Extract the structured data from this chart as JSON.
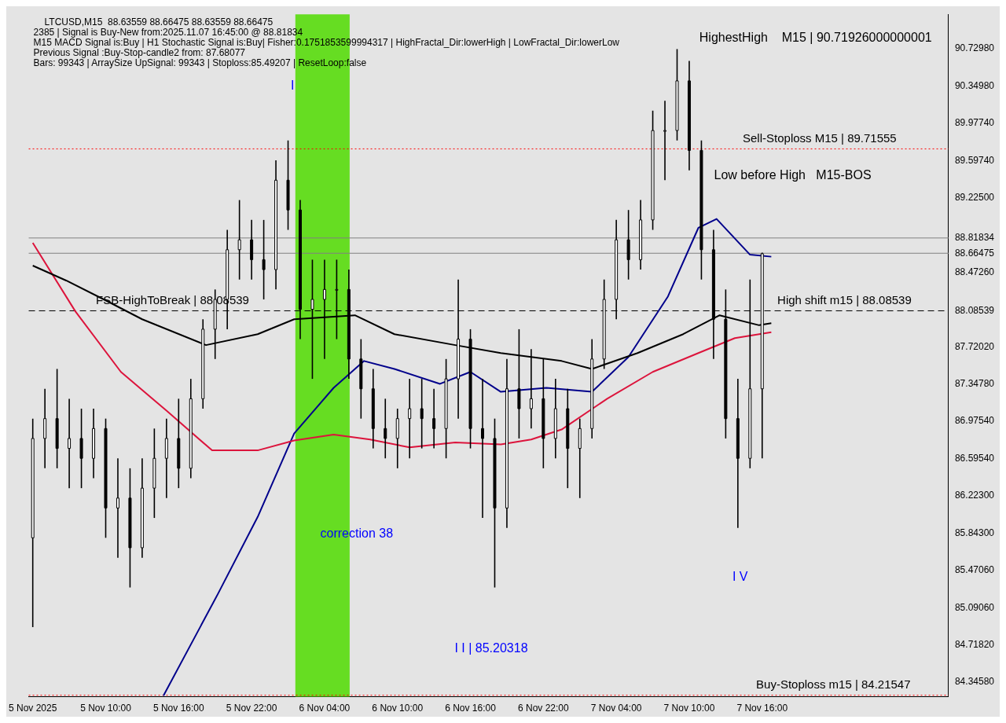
{
  "chart_data": {
    "type": "candlestick",
    "title": "LTCUSD,M15  88.63559 88.66475 88.63559 88.66475",
    "annotations": [
      "2385 | Signal is Buy-New from:2025.11.07 16:45:00 @ 88.81834",
      "M15 MACD Signal is:Buy | H1 Stochastic Signal is:Buy| Fisher:0.1751853599994317 | HighFractal_Dir:lowerHigh | LowFractal_Dir:lowerLow",
      "Previous Signal :Buy-Stop-candle2 from: 87.68077",
      "Bars: 99343 | ArraySize UpSignal: 99343 | Stoploss:85.49207 | ResetLoop:false",
      "HighestHigh    M15 | 90.71926000000001",
      "Low before High   M15-BOS",
      "I",
      "correction 38",
      "I I | 85.20318",
      "I V",
      {
        "text": "Sell-Stoploss M15 | 89.71555",
        "x": "2025-11-07T14:24",
        "y": 89.71555
      },
      {
        "text": "FSB-HighToBreak | 88.08539",
        "x": "2025-11-05T09:12",
        "y": 88.08539
      },
      {
        "text": "High shift m15 | 88.08539",
        "x": "2025-11-07T17:15",
        "y": 88.08539
      },
      {
        "text": "Buy-Stoploss m15 | 84.21547",
        "x": "2025-11-07T15:30",
        "y": 84.21547
      }
    ],
    "x": [
      "2025-11-05T04:00",
      "2025-11-05T05:00",
      "2025-11-05T06:00",
      "2025-11-05T07:00",
      "2025-11-05T08:00",
      "2025-11-05T09:00",
      "2025-11-05T10:00",
      "2025-11-05T11:00",
      "2025-11-05T12:00",
      "2025-11-05T13:00",
      "2025-11-05T14:00",
      "2025-11-05T15:00",
      "2025-11-05T16:00",
      "2025-11-05T17:00",
      "2025-11-05T18:00",
      "2025-11-05T19:00",
      "2025-11-05T20:00",
      "2025-11-05T21:00",
      "2025-11-05T22:00",
      "2025-11-05T23:00",
      "2025-11-06T00:00",
      "2025-11-06T01:00",
      "2025-11-06T02:00",
      "2025-11-06T03:00",
      "2025-11-06T04:00",
      "2025-11-06T05:00",
      "2025-11-06T06:00",
      "2025-11-06T07:00",
      "2025-11-06T08:00",
      "2025-11-06T09:00",
      "2025-11-06T10:00",
      "2025-11-06T11:00",
      "2025-11-06T12:00",
      "2025-11-06T13:00",
      "2025-11-06T14:00",
      "2025-11-06T15:00",
      "2025-11-06T16:00",
      "2025-11-06T17:00",
      "2025-11-06T18:00",
      "2025-11-06T19:00",
      "2025-11-06T20:00",
      "2025-11-06T21:00",
      "2025-11-06T22:00",
      "2025-11-06T23:00",
      "2025-11-07T00:00",
      "2025-11-07T01:00",
      "2025-11-07T02:00",
      "2025-11-07T03:00",
      "2025-11-07T04:00",
      "2025-11-07T05:00",
      "2025-11-07T06:00",
      "2025-11-07T07:00",
      "2025-11-07T08:00",
      "2025-11-07T09:00",
      "2025-11-07T10:00",
      "2025-11-07T11:00",
      "2025-11-07T12:00",
      "2025-11-07T13:00",
      "2025-11-07T14:00",
      "2025-11-07T15:00",
      "2025-11-07T16:00"
    ],
    "ohlc": [
      [
        85.8,
        87.0,
        84.9,
        86.8
      ],
      [
        86.8,
        87.3,
        86.5,
        87.0
      ],
      [
        87.0,
        87.5,
        86.5,
        86.7
      ],
      [
        86.7,
        87.2,
        86.3,
        86.8
      ],
      [
        86.8,
        87.1,
        86.3,
        86.6
      ],
      [
        86.6,
        87.1,
        86.4,
        86.9
      ],
      [
        86.9,
        87.0,
        85.8,
        86.1
      ],
      [
        86.1,
        86.6,
        85.6,
        86.2
      ],
      [
        86.2,
        86.5,
        85.3,
        85.7
      ],
      [
        85.7,
        86.6,
        85.6,
        86.3
      ],
      [
        86.3,
        86.9,
        86.0,
        86.6
      ],
      [
        86.6,
        87.0,
        86.2,
        86.8
      ],
      [
        86.8,
        87.2,
        86.3,
        86.5
      ],
      [
        86.5,
        87.4,
        86.4,
        87.2
      ],
      [
        87.2,
        88.0,
        87.1,
        87.9
      ],
      [
        87.9,
        88.3,
        87.6,
        88.2
      ],
      [
        88.2,
        88.9,
        87.9,
        88.7
      ],
      [
        88.7,
        89.2,
        88.4,
        88.8
      ],
      [
        88.8,
        89.0,
        88.4,
        88.6
      ],
      [
        88.6,
        89.0,
        88.2,
        88.5
      ],
      [
        88.5,
        89.6,
        88.3,
        89.4
      ],
      [
        89.4,
        89.8,
        88.9,
        89.1
      ],
      [
        89.1,
        89.2,
        87.8,
        88.1
      ],
      [
        88.1,
        88.6,
        87.4,
        88.2
      ],
      [
        88.2,
        88.6,
        87.6,
        88.3
      ],
      [
        88.3,
        88.6,
        87.8,
        88.3
      ],
      [
        88.3,
        88.5,
        87.4,
        87.6
      ],
      [
        87.6,
        87.8,
        87.0,
        87.3
      ],
      [
        87.3,
        87.5,
        86.7,
        86.9
      ],
      [
        86.9,
        87.2,
        86.6,
        86.8
      ],
      [
        86.8,
        87.1,
        86.5,
        87.0
      ],
      [
        87.0,
        87.4,
        86.6,
        87.1
      ],
      [
        87.1,
        87.4,
        86.7,
        87.0
      ],
      [
        87.0,
        87.3,
        86.7,
        86.9
      ],
      [
        86.9,
        87.6,
        86.6,
        87.4
      ],
      [
        87.4,
        88.4,
        87.0,
        87.8
      ],
      [
        87.8,
        87.9,
        86.7,
        86.9
      ],
      [
        86.9,
        87.4,
        86.0,
        86.8
      ],
      [
        86.8,
        87.0,
        85.3,
        86.1
      ],
      [
        86.1,
        87.6,
        85.9,
        87.3
      ],
      [
        87.3,
        87.9,
        86.8,
        87.1
      ],
      [
        87.1,
        87.7,
        86.9,
        87.2
      ],
      [
        87.2,
        87.6,
        86.5,
        86.8
      ],
      [
        86.8,
        87.4,
        86.6,
        87.1
      ],
      [
        87.1,
        87.3,
        86.3,
        86.7
      ],
      [
        86.7,
        87.0,
        86.2,
        86.9
      ],
      [
        86.9,
        87.8,
        86.8,
        87.6
      ],
      [
        87.6,
        88.4,
        87.5,
        88.2
      ],
      [
        88.2,
        89.0,
        88.0,
        88.8
      ],
      [
        88.8,
        89.1,
        88.4,
        88.6
      ],
      [
        88.6,
        89.2,
        88.5,
        89.0
      ],
      [
        89.0,
        90.1,
        88.9,
        89.9
      ],
      [
        89.9,
        90.2,
        89.4,
        89.9
      ],
      [
        89.9,
        90.72,
        89.8,
        90.4
      ],
      [
        90.4,
        90.6,
        89.5,
        89.7
      ],
      [
        89.7,
        89.8,
        88.4,
        88.7
      ],
      [
        88.7,
        88.9,
        87.6,
        88.0
      ],
      [
        88.0,
        88.3,
        86.8,
        87.0
      ],
      [
        87.0,
        87.4,
        85.9,
        86.6
      ],
      [
        86.6,
        88.4,
        86.5,
        87.3
      ],
      [
        87.3,
        88.67,
        86.6,
        88.66
      ]
    ],
    "series": [
      {
        "type": "line",
        "color": "#000000",
        "x": [
          "2025-11-05T04:00",
          "2025-11-05T06:45",
          "2025-11-05T10:00",
          "2025-11-05T13:00",
          "2025-11-05T18:15",
          "2025-11-05T22:30",
          "2025-11-06T01:30",
          "2025-11-06T06:30",
          "2025-11-06T09:45",
          "2025-11-06T14:45",
          "2025-11-06T18:30",
          "2025-11-06T23:30",
          "2025-11-07T02:00",
          "2025-11-07T05:45",
          "2025-11-07T09:30",
          "2025-11-07T12:30",
          "2025-11-07T15:45",
          "2025-11-07T16:45"
        ],
        "values": [
          88.54,
          88.39,
          88.19,
          88.0,
          87.74,
          87.85,
          88.0,
          88.04,
          87.85,
          87.74,
          87.66,
          87.58,
          87.5,
          87.66,
          87.85,
          88.04,
          87.94,
          87.96
        ]
      },
      {
        "type": "line",
        "color": "#dc143c",
        "x": [
          "2025-11-05T04:00",
          "2025-11-05T07:30",
          "2025-11-05T11:15",
          "2025-11-05T15:00",
          "2025-11-05T18:45",
          "2025-11-05T22:30",
          "2025-11-06T01:30",
          "2025-11-06T04:45",
          "2025-11-06T07:45",
          "2025-11-06T11:00",
          "2025-11-06T14:45",
          "2025-11-06T18:30",
          "2025-11-06T21:00",
          "2025-11-06T23:30",
          "2025-11-07T03:15",
          "2025-11-07T07:00",
          "2025-11-07T10:45",
          "2025-11-07T13:45",
          "2025-11-07T16:45"
        ],
        "values": [
          88.77,
          88.08,
          87.47,
          87.08,
          86.68,
          86.68,
          86.78,
          86.84,
          86.79,
          86.71,
          86.76,
          86.74,
          86.79,
          86.89,
          87.2,
          87.47,
          87.66,
          87.81,
          87.87
        ]
      },
      {
        "type": "line",
        "color": "#00008b",
        "x": [
          "2025-11-05T14:45",
          "2025-11-05T19:15",
          "2025-11-05T22:30",
          "2025-11-06T01:30",
          "2025-11-06T04:45",
          "2025-11-06T07:15",
          "2025-11-06T09:45",
          "2025-11-06T13:30",
          "2025-11-06T16:00",
          "2025-11-06T18:30",
          "2025-11-06T22:15",
          "2025-11-07T02:00",
          "2025-11-07T05:00",
          "2025-11-07T08:15",
          "2025-11-07T10:45",
          "2025-11-07T12:15",
          "2025-11-07T15:00",
          "2025-11-07T16:45"
        ],
        "values": [
          84.21,
          85.24,
          86.01,
          86.85,
          87.31,
          87.58,
          87.5,
          87.35,
          87.47,
          87.27,
          87.31,
          87.27,
          87.62,
          88.23,
          88.92,
          89.01,
          88.65,
          88.63
        ]
      }
    ],
    "ref_lines": [
      {
        "axis": "y",
        "value": 88.81834,
        "color": "#808080",
        "line_style": "solid"
      },
      {
        "axis": "y",
        "value": 88.66475,
        "color": "#808080",
        "line_style": "solid"
      },
      {
        "axis": "y",
        "value": 88.08539,
        "color": "#000000",
        "line_style": "dashed"
      },
      {
        "axis": "y",
        "value": 89.71555,
        "color": "#ff0000",
        "line_style": "dotted"
      },
      {
        "axis": "y",
        "value": 84.21547,
        "color": "#ff0000",
        "line_style": "dotted"
      }
    ],
    "bands": [
      {
        "axis": "x",
        "from": "2025-11-06T01:36",
        "to": "2025-11-06T06:04",
        "color": "#66dd22"
      }
    ],
    "xlim": [
      "2025-11-05T03:40",
      "2025-11-08T07:20"
    ],
    "ylim": [
      84.2,
      91.07
    ],
    "xticks": [
      {
        "value": "2025-11-05T04:00",
        "label": "5 Nov 2025"
      },
      {
        "value": "2025-11-05T10:00",
        "label": "5 Nov 10:00"
      },
      {
        "value": "2025-11-05T16:00",
        "label": "5 Nov 16:00"
      },
      {
        "value": "2025-11-05T22:00",
        "label": "5 Nov 22:00"
      },
      {
        "value": "2025-11-06T04:00",
        "label": "6 Nov 04:00"
      },
      {
        "value": "2025-11-06T10:00",
        "label": "6 Nov 10:00"
      },
      {
        "value": "2025-11-06T16:00",
        "label": "6 Nov 16:00"
      },
      {
        "value": "2025-11-06T22:00",
        "label": "6 Nov 22:00"
      },
      {
        "value": "2025-11-07T04:00",
        "label": "7 Nov 04:00"
      },
      {
        "value": "2025-11-07T10:00",
        "label": "7 Nov 10:00"
      },
      {
        "value": "2025-11-07T16:00",
        "label": "7 Nov 16:00"
      }
    ],
    "yticks": [
      {
        "value": 84.3458,
        "label": "84.34580"
      },
      {
        "value": 84.7182,
        "label": "84.71820"
      },
      {
        "value": 85.0906,
        "label": "85.09060"
      },
      {
        "value": 85.4706,
        "label": "85.47060"
      },
      {
        "value": 85.843,
        "label": "85.84300"
      },
      {
        "value": 86.223,
        "label": "86.22300"
      },
      {
        "value": 86.5954,
        "label": "86.59540"
      },
      {
        "value": 86.9754,
        "label": "86.97540"
      },
      {
        "value": 87.3478,
        "label": "87.34780"
      },
      {
        "value": 87.7202,
        "label": "87.72020"
      },
      {
        "value": 88.08539,
        "label": "88.08539"
      },
      {
        "value": 88.4726,
        "label": "88.47260"
      },
      {
        "value": 88.66475,
        "label": "88.66475"
      },
      {
        "value": 88.81834,
        "label": "88.81834"
      },
      {
        "value": 89.225,
        "label": "89.22500"
      },
      {
        "value": 89.5974,
        "label": "89.59740"
      },
      {
        "value": 89.9774,
        "label": "89.97740"
      },
      {
        "value": 90.3498,
        "label": "90.34980"
      },
      {
        "value": 90.7298,
        "label": "90.72980"
      }
    ],
    "grid": false,
    "legend": false,
    "marker": "none",
    "line_style": "solid"
  }
}
